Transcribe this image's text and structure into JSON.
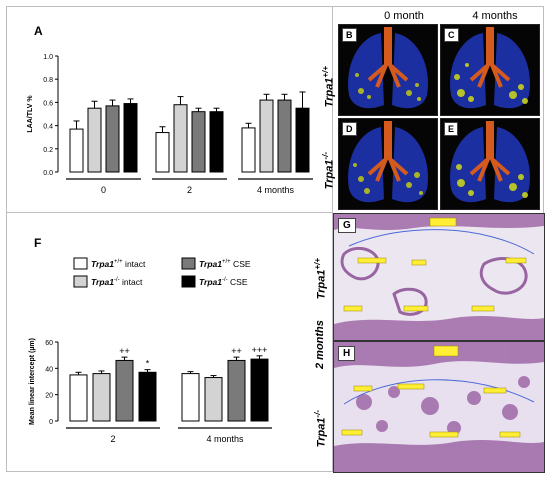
{
  "panels": {
    "A": "A",
    "B": "B",
    "C": "C",
    "D": "D",
    "E": "E",
    "F": "F",
    "G": "G",
    "H": "H"
  },
  "ct": {
    "col_0": "0 month",
    "col_4": "4 months",
    "row_wt": "Trpa1+/+",
    "row_ko": "Trpa1-/-"
  },
  "histology": {
    "row_g": "Trpa1+/+",
    "row_h": "Trpa1-/-",
    "time": "2 months"
  },
  "colors": {
    "white": "#ffffff",
    "lightgray": "#d3d3d3",
    "darkgray": "#7a7a7a",
    "black": "#000000"
  },
  "chart_data": [
    {
      "id": "A",
      "type": "bar",
      "ylabel": "LAA/TLV %",
      "ylim": [
        0,
        1.0
      ],
      "yticks": [
        "0.0",
        "0.2",
        "0.4",
        "0.6",
        "0.8",
        "1.0"
      ],
      "group_labels": [
        "0",
        "2",
        "4 months"
      ],
      "fills": [
        "#ffffff",
        "#d3d3d3",
        "#7a7a7a",
        "#000000"
      ],
      "groups": [
        {
          "values": [
            0.37,
            0.55,
            0.57,
            0.59
          ],
          "errors": [
            0.07,
            0.06,
            0.05,
            0.04
          ]
        },
        {
          "values": [
            0.34,
            0.58,
            0.52,
            0.52
          ],
          "errors": [
            0.05,
            0.07,
            0.03,
            0.03
          ]
        },
        {
          "values": [
            0.38,
            0.62,
            0.62,
            0.55
          ],
          "errors": [
            0.04,
            0.05,
            0.05,
            0.14
          ]
        }
      ]
    },
    {
      "id": "F",
      "type": "bar",
      "ylabel": "Mean linear intercept (µm)",
      "ylim": [
        0,
        60
      ],
      "yticks": [
        "0",
        "20",
        "40",
        "60"
      ],
      "group_labels": [
        "2",
        "4 months"
      ],
      "fills": [
        "#ffffff",
        "#d3d3d3",
        "#7a7a7a",
        "#000000"
      ],
      "legend": [
        {
          "gene": "Trpa1",
          "sup": "+/+",
          "cond": "intact"
        },
        {
          "gene": "Trpa1",
          "sup": "-/-",
          "cond": "intact"
        },
        {
          "gene": "Trpa1",
          "sup": "+/+",
          "cond": "CSE"
        },
        {
          "gene": "Trpa1",
          "sup": "-/-",
          "cond": "CSE"
        }
      ],
      "groups": [
        {
          "values": [
            35,
            36,
            46,
            37
          ],
          "errors": [
            2,
            2,
            2.5,
            2
          ],
          "annotations": [
            "",
            "",
            "++",
            "*"
          ]
        },
        {
          "values": [
            36,
            33,
            46,
            47
          ],
          "errors": [
            1.5,
            1.5,
            2.5,
            2.5
          ],
          "annotations": [
            "",
            "",
            "++",
            "+++"
          ]
        }
      ]
    }
  ]
}
